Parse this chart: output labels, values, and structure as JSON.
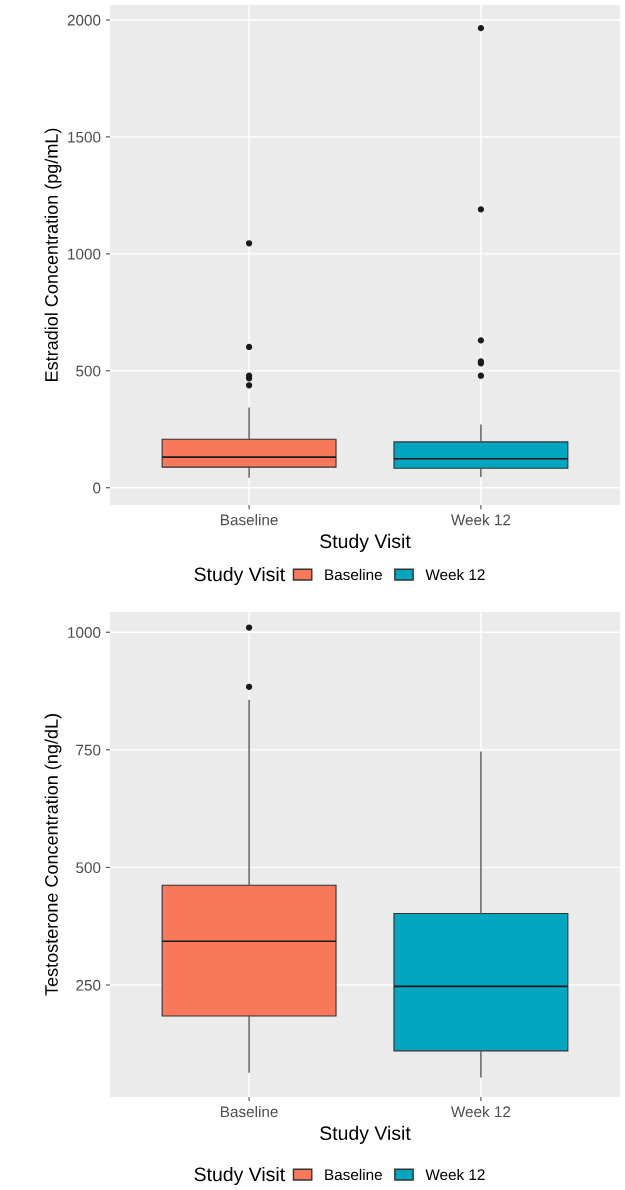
{
  "chart_data": [
    {
      "type": "box",
      "xlabel": "Study Visit",
      "ylabel": "Estradiol Concentration (pg/mL)",
      "legend_title": "Study Visit",
      "legend": "bottom",
      "grid": true,
      "categories": [
        "Baseline",
        "Week 12"
      ],
      "ylim": [
        -74,
        2064
      ],
      "yticks": [
        0,
        500,
        1000,
        1500,
        2000
      ],
      "series": [
        {
          "name": "Baseline",
          "color": "#f8785a",
          "boxes": [
            {
              "low": 46,
              "q1": 88,
              "median": 131,
              "q3": 207,
              "high": 340,
              "outliers": [
                438,
                468,
                479,
                602,
                1045
              ]
            },
            null
          ]
        },
        {
          "name": "Week 12",
          "color": "#00a5c0",
          "boxes": [
            null,
            {
              "low": 49,
              "q1": 83,
              "median": 124,
              "q3": 196,
              "high": 267,
              "outliers": [
                479,
                532,
                540,
                630,
                1190,
                1965
              ]
            }
          ]
        }
      ]
    },
    {
      "type": "box",
      "xlabel": "Study Visit",
      "ylabel": "Testosterone Concentration (ng/dL)",
      "legend_title": "Study Visit",
      "legend": "bottom",
      "grid": true,
      "categories": [
        "Baseline",
        "Week 12"
      ],
      "ylim": [
        12,
        1043
      ],
      "yticks": [
        250,
        500,
        750,
        1000
      ],
      "series": [
        {
          "name": "Baseline",
          "color": "#f8785a",
          "boxes": [
            {
              "low": 65,
              "q1": 184,
              "median": 343,
              "q3": 462,
              "high": 855,
              "outliers": [
                884,
                1010
              ]
            },
            null
          ]
        },
        {
          "name": "Week 12",
          "color": "#00a5c0",
          "boxes": [
            null,
            {
              "low": 55,
              "q1": 110,
              "median": 247,
              "q3": 402,
              "high": 745
            }
          ]
        }
      ]
    }
  ]
}
